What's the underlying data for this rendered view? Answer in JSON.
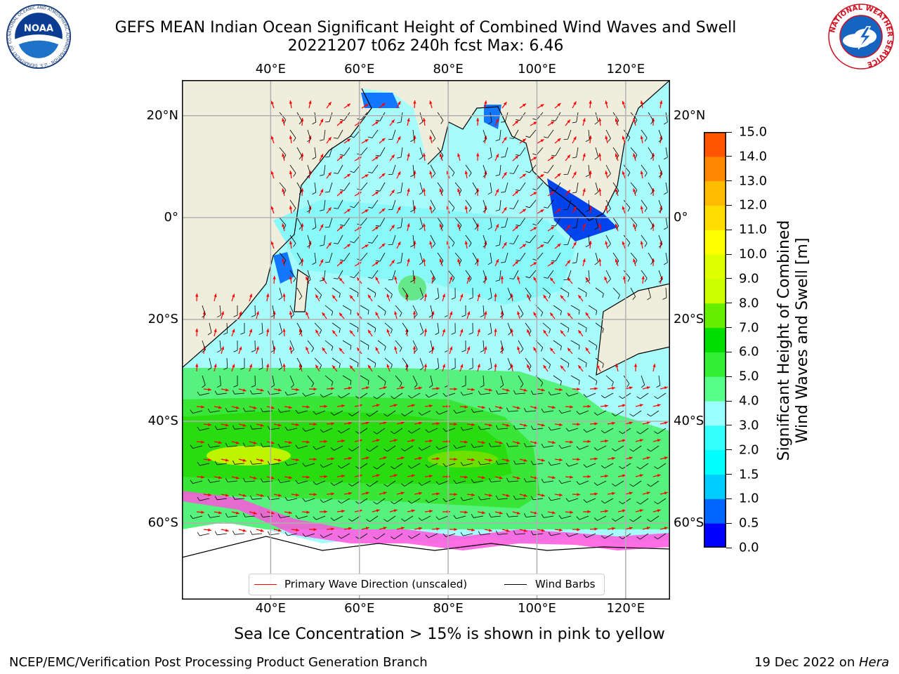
{
  "title_line1": "GEFS MEAN Indian Ocean Significant Height of Combined Wind Waves and Swell",
  "title_line2": "20221207 t06z 240h fcst   Max: 6.46",
  "map": {
    "lon_labels": [
      "40°E",
      "60°E",
      "80°E",
      "100°E",
      "120°E"
    ],
    "lon_values": [
      40,
      60,
      80,
      100,
      120
    ],
    "lat_labels_left": [
      "20°N",
      "0°",
      "20°S",
      "40°S",
      "60°S"
    ],
    "lat_labels_right": [
      "20°N",
      "0°",
      "20°S",
      "40°S",
      "60°S"
    ],
    "lat_values": [
      20,
      0,
      -20,
      -40,
      -60
    ],
    "lon_range": [
      20,
      130
    ],
    "lat_range": [
      -75,
      27
    ],
    "land_color": "#efeedd",
    "grid": true,
    "sea_ice_region": "below 60°S",
    "max_region": "southern Indian Ocean near 50°S, 30°E–50°E"
  },
  "legend": {
    "items": [
      {
        "label": "Primary Wave Direction (unscaled)",
        "color": "#ff0000"
      },
      {
        "label": "Wind Barbs",
        "color": "#000000"
      }
    ]
  },
  "colorbar": {
    "title_line1": "Significant Height of Combined",
    "title_line2": "Wind Waves and Swell [m]",
    "tick_labels": [
      "0.0",
      "0.5",
      "1.0",
      "1.5",
      "2.0",
      "3.0",
      "4.0",
      "5.0",
      "6.0",
      "7.0",
      "8.0",
      "9.0",
      "10.0",
      "11.0",
      "12.0",
      "13.0",
      "14.0",
      "15.0"
    ],
    "colors": [
      "#0000ff",
      "#0066ff",
      "#00ccff",
      "#00ffff",
      "#33ffff",
      "#99ffff",
      "#55ff88",
      "#33ee33",
      "#00dd00",
      "#66ee00",
      "#ccff00",
      "#ddff00",
      "#ffff00",
      "#ffdd00",
      "#ffbb00",
      "#ff8800",
      "#ff5500",
      "#ff2200",
      "#ff0000"
    ]
  },
  "note": "Sea Ice Concentration > 15% is shown in pink to yellow",
  "credit": "NCEP/EMC/Verification Post Processing Product Generation Branch",
  "date_prefix": "19 Dec 2022 on ",
  "date_host": "Hera",
  "logos": {
    "noaa": {
      "text": "NOAA",
      "ring_text": "NATIONAL OCEANIC AND ATMOSPHERIC ADMINISTRATION · U.S. DEPARTMENT OF COMMERCE"
    },
    "nws": {
      "ring_text": "NATIONAL WEATHER SERVICE"
    }
  }
}
